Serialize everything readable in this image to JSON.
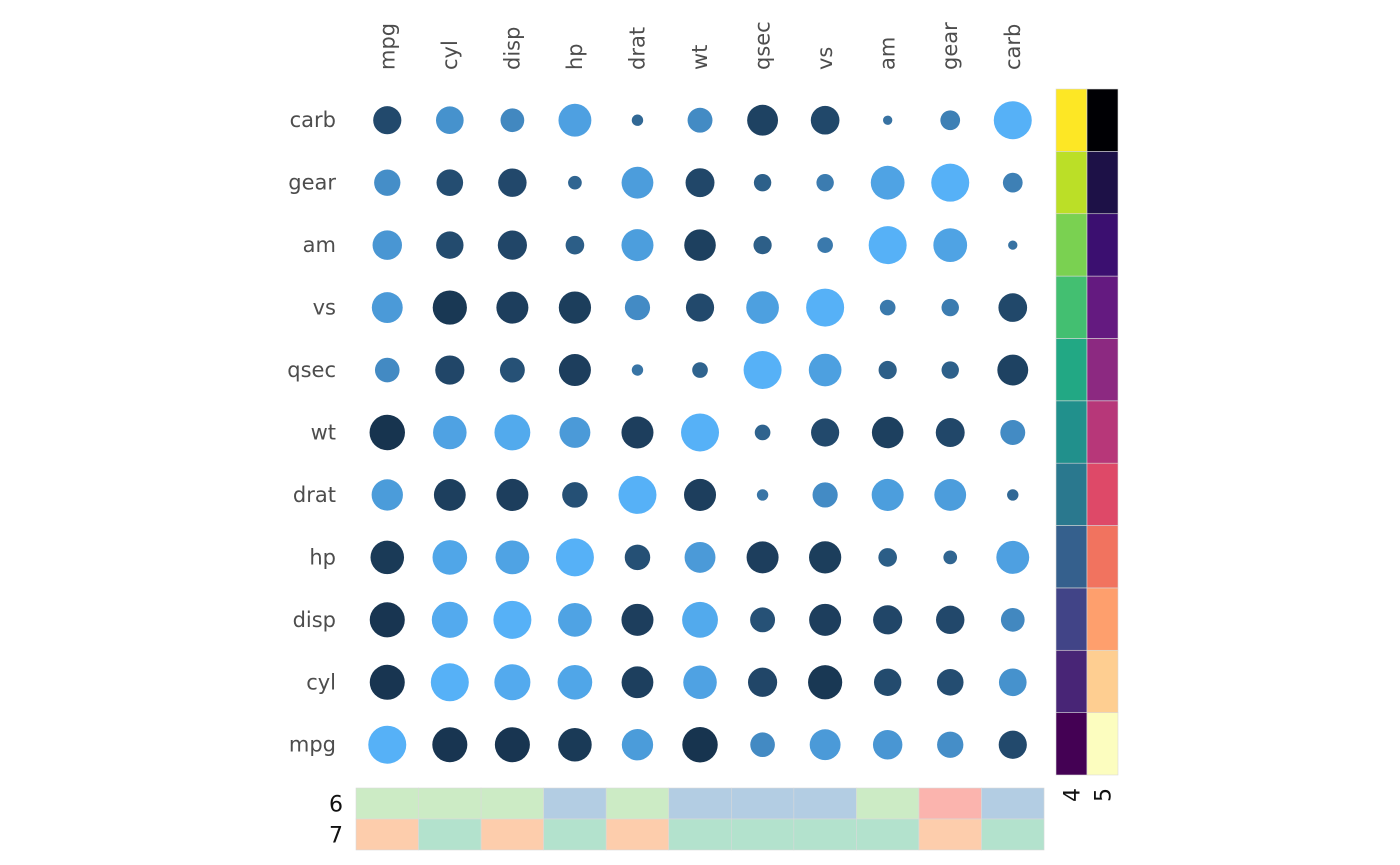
{
  "chart_data": {
    "type": "heatmap",
    "variables": [
      "mpg",
      "cyl",
      "disp",
      "hp",
      "drat",
      "wt",
      "qsec",
      "vs",
      "am",
      "gear",
      "carb"
    ],
    "row_order": [
      "carb",
      "gear",
      "am",
      "vs",
      "qsec",
      "wt",
      "drat",
      "hp",
      "disp",
      "cyl",
      "mpg"
    ],
    "col_order": [
      "mpg",
      "cyl",
      "disp",
      "hp",
      "drat",
      "wt",
      "qsec",
      "vs",
      "am",
      "gear",
      "carb"
    ],
    "values": {
      "mpg": [
        1.0,
        -0.85,
        -0.85,
        -0.78,
        0.68,
        -0.87,
        0.42,
        0.66,
        0.6,
        0.48,
        -0.55
      ],
      "cyl": [
        -0.85,
        1.0,
        0.9,
        0.83,
        -0.7,
        0.78,
        -0.59,
        -0.81,
        -0.52,
        -0.49,
        0.53
      ],
      "disp": [
        -0.85,
        0.9,
        1.0,
        0.79,
        -0.71,
        0.89,
        -0.43,
        -0.71,
        -0.59,
        -0.56,
        0.39
      ],
      "hp": [
        -0.78,
        0.83,
        0.79,
        1.0,
        -0.45,
        0.66,
        -0.71,
        -0.72,
        -0.24,
        -0.13,
        0.75
      ],
      "drat": [
        0.68,
        -0.7,
        -0.71,
        -0.45,
        1.0,
        -0.71,
        0.09,
        0.44,
        0.71,
        0.7,
        -0.09
      ],
      "wt": [
        -0.87,
        0.78,
        0.89,
        0.66,
        -0.71,
        1.0,
        -0.17,
        -0.55,
        -0.69,
        -0.58,
        0.43
      ],
      "qsec": [
        0.42,
        -0.59,
        -0.43,
        -0.71,
        0.09,
        -0.17,
        1.0,
        0.74,
        -0.23,
        -0.21,
        -0.66
      ],
      "vs": [
        0.66,
        -0.81,
        -0.71,
        -0.72,
        0.44,
        -0.55,
        0.74,
        1.0,
        0.17,
        0.21,
        -0.57
      ],
      "am": [
        0.6,
        -0.52,
        -0.59,
        -0.24,
        0.71,
        -0.69,
        -0.23,
        0.17,
        1.0,
        0.79,
        0.06
      ],
      "gear": [
        0.48,
        -0.49,
        -0.56,
        -0.13,
        0.7,
        -0.58,
        -0.21,
        0.21,
        0.79,
        1.0,
        0.27
      ],
      "carb": [
        -0.55,
        0.53,
        0.39,
        0.75,
        -0.09,
        0.43,
        -0.66,
        -0.57,
        0.06,
        0.27,
        1.0
      ]
    },
    "color_scale": {
      "low": "#132B43",
      "high": "#56B1F7",
      "range": [
        -1,
        1
      ]
    },
    "point_size": "scaled by correlation value",
    "right_annotations": [
      {
        "label": "4",
        "palette": "viridis",
        "colors": [
          "#440154",
          "#482576",
          "#414487",
          "#35608D",
          "#2A788E",
          "#21908C",
          "#22A884",
          "#43BF71",
          "#7AD151",
          "#BBDF27",
          "#FDE725"
        ]
      },
      {
        "label": "5",
        "palette": "magma",
        "colors": [
          "#FCFDBF",
          "#FECE91",
          "#FE9F6D",
          "#F1735F",
          "#DE4968",
          "#B73779",
          "#8C2981",
          "#641A80",
          "#3B0F70",
          "#1D1147",
          "#000004"
        ]
      }
    ],
    "bottom_annotations": [
      {
        "label": "6",
        "colors": [
          "#CCEBC5",
          "#CCEBC5",
          "#CCEBC5",
          "#B3CDE3",
          "#CCEBC5",
          "#B3CDE3",
          "#B3CDE3",
          "#B3CDE3",
          "#CCEBC5",
          "#FBB4AE",
          "#B3CDE3"
        ]
      },
      {
        "label": "7",
        "colors": [
          "#FDCDAC",
          "#B3E2CD",
          "#FDCDAC",
          "#B3E2CD",
          "#FDCDAC",
          "#B3E2CD",
          "#B3E2CD",
          "#B3E2CD",
          "#B3E2CD",
          "#FDCDAC",
          "#B3E2CD"
        ]
      }
    ]
  }
}
